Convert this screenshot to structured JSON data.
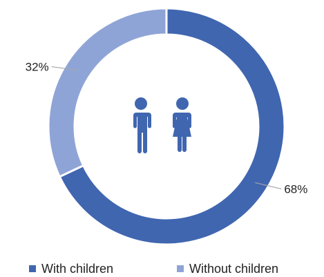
{
  "chart_data": {
    "type": "pie",
    "variant": "donut",
    "categories": [
      "With children",
      "Without children"
    ],
    "values": [
      68,
      32
    ],
    "data_labels": [
      "68%",
      "32%"
    ],
    "colors": [
      "#4066b0",
      "#8fa4d6"
    ],
    "center_icon": "children-icon",
    "legend": {
      "placement": "bottom",
      "entries": [
        "With children",
        "Without children"
      ]
    }
  }
}
